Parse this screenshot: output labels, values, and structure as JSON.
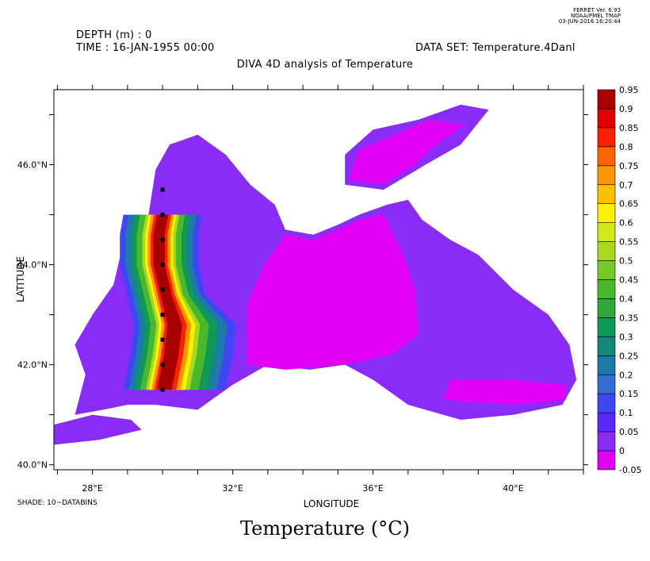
{
  "ferret": {
    "version": "FERRET Ver. 6.93",
    "org": "NOAA/PMEL TMAP",
    "timestamp": "03-JUN-2016 16:20:44"
  },
  "header": {
    "depth": "DEPTH (m) : 0",
    "time": "TIME : 16-JAN-1955 00:00",
    "dataset": "DATA SET: Temperature.4Danl"
  },
  "footer": {
    "shade_note": "SHADE: 10~DATABINS",
    "title": "Temperature (°C)"
  },
  "chart_data": {
    "type": "heatmap",
    "title": "DIVA 4D analysis of Temperature",
    "xlabel": "LONGITUDE",
    "ylabel": "LATITUDE",
    "xlim": [
      26.9,
      42.0
    ],
    "ylim": [
      39.9,
      47.5
    ],
    "x_ticks": [
      {
        "value": 28,
        "label": "28°E"
      },
      {
        "value": 32,
        "label": "32°E"
      },
      {
        "value": 36,
        "label": "36°E"
      },
      {
        "value": 40,
        "label": "40°E"
      }
    ],
    "y_ticks": [
      {
        "value": 40,
        "label": "40.0°N"
      },
      {
        "value": 42,
        "label": "42.0°N"
      },
      {
        "value": 44,
        "label": "44.0°N"
      },
      {
        "value": 46,
        "label": "46.0°N"
      }
    ],
    "grid": false,
    "colorbar": {
      "levels": [
        "-0.05",
        "0",
        "0.05",
        "0.1",
        "0.15",
        "0.2",
        "0.25",
        "0.3",
        "0.35",
        "0.4",
        "0.45",
        "0.5",
        "0.55",
        "0.6",
        "0.65",
        "0.7",
        "0.75",
        "0.8",
        "0.85",
        "0.9",
        "0.95"
      ],
      "colors": [
        "#e000f4",
        "#8a2cf8",
        "#5c28f8",
        "#3f47f2",
        "#356cd0",
        "#1e7aa8",
        "#11887a",
        "#109858",
        "#2ea83c",
        "#4ab82c",
        "#78c82a",
        "#a8d820",
        "#d2e818",
        "#fff000",
        "#fcc000",
        "#fc9600",
        "#fc6400",
        "#fc2000",
        "#e00000",
        "#a80000"
      ]
    },
    "field_description_values": {
      "open_sea_min": -0.05,
      "coastal_background": 0.0,
      "western_plume_max": 0.95
    },
    "sample_points": [
      {
        "lon": 30.0,
        "lat": 45.5
      },
      {
        "lon": 30.0,
        "lat": 45.0
      },
      {
        "lon": 30.0,
        "lat": 44.5
      },
      {
        "lon": 30.0,
        "lat": 44.0
      },
      {
        "lon": 30.0,
        "lat": 43.5
      },
      {
        "lon": 30.0,
        "lat": 43.0
      },
      {
        "lon": 30.0,
        "lat": 42.5
      },
      {
        "lon": 30.0,
        "lat": 42.0
      },
      {
        "lon": 30.0,
        "lat": 41.5
      }
    ]
  }
}
